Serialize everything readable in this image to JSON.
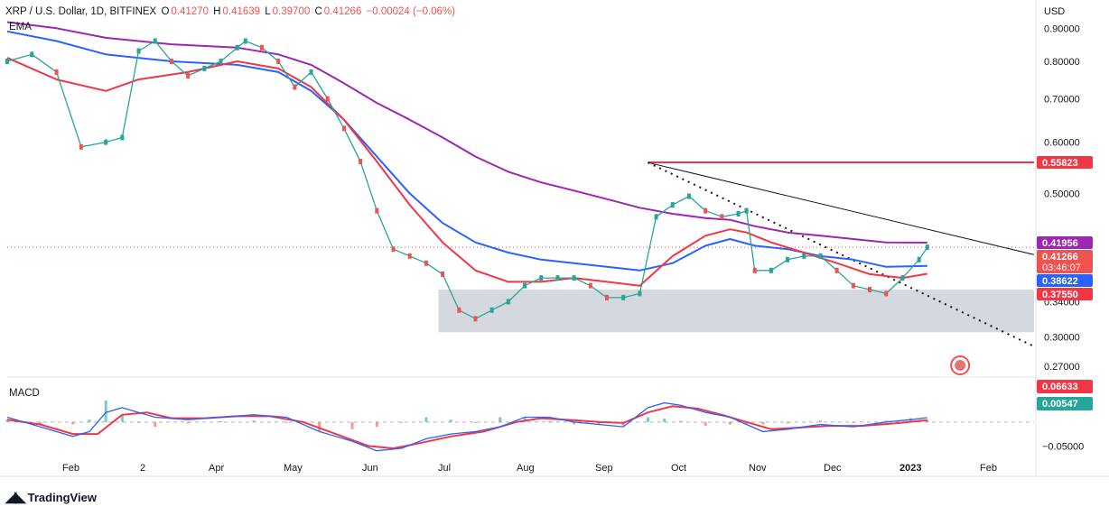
{
  "header": {
    "symbol": "XRP / U.S. Dollar, 1D, BITFINEX",
    "open_label": "O",
    "open": "0.41270",
    "high_label": "H",
    "high": "0.41639",
    "low_label": "L",
    "low": "0.39700",
    "close_label": "C",
    "close": "0.41266",
    "change": "−0.00024 (−0.06%)"
  },
  "indicators": {
    "main": "EMA",
    "sub": "MACD"
  },
  "branding": {
    "name": "TradingView"
  },
  "colors": {
    "up": "#26a69a",
    "down": "#ef5350",
    "ema_fast": "#f23645",
    "ema_mid": "#2962ff",
    "ema_slow": "#9c27b0",
    "resistance": "#f23645",
    "support_zone": "#d1d4dc",
    "trendline": "#131722",
    "macd_line": "#2962ff",
    "signal_line": "#f23645"
  },
  "chart_data": {
    "type": "line",
    "title": "XRP / U.S. Dollar, 1D, BITFINEX",
    "price_axis": {
      "unit": "USD",
      "scale": "log",
      "ticks": [
        "0.90000",
        "0.80000",
        "0.70000",
        "0.60000",
        "0.50000",
        "0.34000",
        "0.30000",
        "0.27000"
      ]
    },
    "time_axis": {
      "ticks": [
        "Feb",
        "2",
        "Apr",
        "May",
        "Jun",
        "Jul",
        "Aug",
        "Sep",
        "Oct",
        "Nov",
        "Dec",
        "2023",
        "Feb"
      ]
    },
    "series": [
      {
        "name": "XRP price",
        "points": [
          [
            0,
            0.8
          ],
          [
            3,
            0.82
          ],
          [
            6,
            0.77
          ],
          [
            9,
            0.59
          ],
          [
            12,
            0.6
          ],
          [
            14,
            0.61
          ],
          [
            16,
            0.83
          ],
          [
            18,
            0.86
          ],
          [
            20,
            0.8
          ],
          [
            22,
            0.76
          ],
          [
            24,
            0.78
          ],
          [
            26,
            0.8
          ],
          [
            28,
            0.84
          ],
          [
            29,
            0.86
          ],
          [
            31,
            0.84
          ],
          [
            33,
            0.8
          ],
          [
            35,
            0.73
          ],
          [
            37,
            0.77
          ],
          [
            39,
            0.7
          ],
          [
            41,
            0.63
          ],
          [
            43,
            0.56
          ],
          [
            45,
            0.47
          ],
          [
            47,
            0.41
          ],
          [
            49,
            0.4
          ],
          [
            51,
            0.39
          ],
          [
            53,
            0.375
          ],
          [
            55,
            0.33
          ],
          [
            57,
            0.32
          ],
          [
            59,
            0.33
          ],
          [
            61,
            0.34
          ],
          [
            63,
            0.36
          ],
          [
            65,
            0.37
          ],
          [
            67,
            0.37
          ],
          [
            69,
            0.37
          ],
          [
            71,
            0.36
          ],
          [
            73,
            0.345
          ],
          [
            75,
            0.345
          ],
          [
            77,
            0.35
          ],
          [
            79,
            0.46
          ],
          [
            81,
            0.48
          ],
          [
            83,
            0.495
          ],
          [
            85,
            0.47
          ],
          [
            87,
            0.46
          ],
          [
            89,
            0.465
          ],
          [
            90,
            0.47
          ],
          [
            91,
            0.38
          ],
          [
            93,
            0.38
          ],
          [
            95,
            0.395
          ],
          [
            97,
            0.4
          ],
          [
            99,
            0.4
          ],
          [
            101,
            0.38
          ],
          [
            103,
            0.36
          ],
          [
            105,
            0.355
          ],
          [
            107,
            0.35
          ],
          [
            109,
            0.37
          ],
          [
            111,
            0.395
          ],
          [
            112,
            0.41266
          ]
        ]
      },
      {
        "name": "EMA fast",
        "points": [
          [
            0,
            0.81
          ],
          [
            6,
            0.75
          ],
          [
            12,
            0.72
          ],
          [
            16,
            0.75
          ],
          [
            22,
            0.77
          ],
          [
            28,
            0.8
          ],
          [
            33,
            0.78
          ],
          [
            37,
            0.73
          ],
          [
            41,
            0.65
          ],
          [
            45,
            0.56
          ],
          [
            49,
            0.48
          ],
          [
            53,
            0.42
          ],
          [
            57,
            0.38
          ],
          [
            61,
            0.365
          ],
          [
            65,
            0.365
          ],
          [
            69,
            0.37
          ],
          [
            73,
            0.365
          ],
          [
            77,
            0.36
          ],
          [
            81,
            0.4
          ],
          [
            85,
            0.43
          ],
          [
            88,
            0.44
          ],
          [
            90,
            0.435
          ],
          [
            93,
            0.42
          ],
          [
            97,
            0.405
          ],
          [
            101,
            0.39
          ],
          [
            105,
            0.375
          ],
          [
            109,
            0.37
          ],
          [
            112,
            0.3755
          ]
        ]
      },
      {
        "name": "EMA mid",
        "points": [
          [
            0,
            0.89
          ],
          [
            6,
            0.86
          ],
          [
            12,
            0.82
          ],
          [
            20,
            0.8
          ],
          [
            28,
            0.79
          ],
          [
            33,
            0.77
          ],
          [
            37,
            0.72
          ],
          [
            41,
            0.65
          ],
          [
            45,
            0.57
          ],
          [
            49,
            0.5
          ],
          [
            53,
            0.45
          ],
          [
            57,
            0.42
          ],
          [
            61,
            0.405
          ],
          [
            65,
            0.395
          ],
          [
            69,
            0.39
          ],
          [
            73,
            0.385
          ],
          [
            77,
            0.38
          ],
          [
            81,
            0.39
          ],
          [
            85,
            0.415
          ],
          [
            88,
            0.425
          ],
          [
            91,
            0.415
          ],
          [
            95,
            0.41
          ],
          [
            99,
            0.4
          ],
          [
            103,
            0.395
          ],
          [
            107,
            0.385
          ],
          [
            112,
            0.38622
          ]
        ]
      },
      {
        "name": "EMA slow",
        "points": [
          [
            0,
            0.92
          ],
          [
            6,
            0.9
          ],
          [
            12,
            0.87
          ],
          [
            20,
            0.85
          ],
          [
            28,
            0.84
          ],
          [
            33,
            0.82
          ],
          [
            37,
            0.79
          ],
          [
            41,
            0.74
          ],
          [
            45,
            0.69
          ],
          [
            49,
            0.65
          ],
          [
            53,
            0.61
          ],
          [
            57,
            0.57
          ],
          [
            61,
            0.54
          ],
          [
            65,
            0.52
          ],
          [
            69,
            0.505
          ],
          [
            73,
            0.49
          ],
          [
            77,
            0.475
          ],
          [
            81,
            0.465
          ],
          [
            85,
            0.458
          ],
          [
            88,
            0.455
          ],
          [
            91,
            0.445
          ],
          [
            95,
            0.435
          ],
          [
            99,
            0.43
          ],
          [
            103,
            0.425
          ],
          [
            107,
            0.42
          ],
          [
            112,
            0.41956
          ]
        ]
      }
    ],
    "levels": [
      {
        "name": "resistance",
        "value": 0.55823
      },
      {
        "name": "support-zone",
        "from": 0.305,
        "to": 0.355
      }
    ],
    "trendlines": [
      {
        "name": "descending-trendline-solid",
        "from": [
          78,
          0.558
        ],
        "to": [
          125,
          0.402
        ]
      },
      {
        "name": "descending-trendline-dotted",
        "from": [
          78,
          0.558
        ],
        "to": [
          125,
          0.29
        ]
      }
    ],
    "price_labels": [
      "0.55823",
      "0.41956",
      "0.41266",
      "03:46:07",
      "0.38622",
      "0.37550"
    ],
    "macd": {
      "ticks": [
        "0.06633",
        "0.00547",
        "−0.05000"
      ],
      "zero_value": 0,
      "macd_line": [
        [
          0,
          0.01
        ],
        [
          4,
          -0.01
        ],
        [
          8,
          -0.03
        ],
        [
          10,
          -0.02
        ],
        [
          12,
          0.02
        ],
        [
          14,
          0.03
        ],
        [
          16,
          0.02
        ],
        [
          18,
          0.01
        ],
        [
          22,
          0.005
        ],
        [
          26,
          0.01
        ],
        [
          30,
          0.015
        ],
        [
          34,
          0.01
        ],
        [
          38,
          -0.02
        ],
        [
          42,
          -0.04
        ],
        [
          45,
          -0.06
        ],
        [
          48,
          -0.055
        ],
        [
          51,
          -0.035
        ],
        [
          54,
          -0.025
        ],
        [
          57,
          -0.02
        ],
        [
          60,
          -0.01
        ],
        [
          63,
          0.01
        ],
        [
          66,
          0.01
        ],
        [
          69,
          0.0
        ],
        [
          72,
          -0.005
        ],
        [
          75,
          -0.01
        ],
        [
          78,
          0.03
        ],
        [
          80,
          0.04
        ],
        [
          82,
          0.035
        ],
        [
          85,
          0.02
        ],
        [
          88,
          0.01
        ],
        [
          90,
          -0.005
        ],
        [
          92,
          -0.02
        ],
        [
          95,
          -0.015
        ],
        [
          99,
          -0.005
        ],
        [
          103,
          -0.01
        ],
        [
          107,
          0.0
        ],
        [
          110,
          0.005
        ],
        [
          112,
          0.009
        ]
      ],
      "signal_line": [
        [
          0,
          0.005
        ],
        [
          4,
          -0.005
        ],
        [
          8,
          -0.025
        ],
        [
          11,
          -0.025
        ],
        [
          14,
          0.015
        ],
        [
          17,
          0.02
        ],
        [
          20,
          0.008
        ],
        [
          24,
          0.008
        ],
        [
          28,
          0.012
        ],
        [
          32,
          0.012
        ],
        [
          36,
          0.0
        ],
        [
          40,
          -0.025
        ],
        [
          44,
          -0.05
        ],
        [
          47,
          -0.055
        ],
        [
          50,
          -0.045
        ],
        [
          54,
          -0.03
        ],
        [
          58,
          -0.02
        ],
        [
          62,
          0.0
        ],
        [
          65,
          0.008
        ],
        [
          68,
          0.005
        ],
        [
          72,
          0.0
        ],
        [
          75,
          -0.002
        ],
        [
          78,
          0.02
        ],
        [
          81,
          0.033
        ],
        [
          84,
          0.028
        ],
        [
          87,
          0.015
        ],
        [
          90,
          0.0
        ],
        [
          93,
          -0.015
        ],
        [
          96,
          -0.012
        ],
        [
          100,
          -0.008
        ],
        [
          104,
          -0.008
        ],
        [
          108,
          -0.003
        ],
        [
          112,
          0.004
        ]
      ]
    }
  }
}
